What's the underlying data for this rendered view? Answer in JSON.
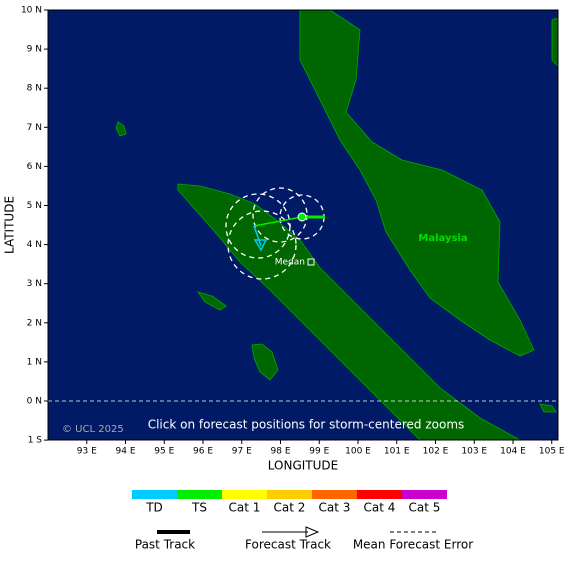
{
  "map": {
    "x_axis_label": "LONGITUDE",
    "y_axis_label": "LATITUDE",
    "xticks": [
      {
        "value": 93,
        "label": "93 E"
      },
      {
        "value": 94,
        "label": "94 E"
      },
      {
        "value": 95,
        "label": "95 E"
      },
      {
        "value": 96,
        "label": "96 E"
      },
      {
        "value": 97,
        "label": "97 E"
      },
      {
        "value": 98,
        "label": "98 E"
      },
      {
        "value": 99,
        "label": "99 E"
      },
      {
        "value": 100,
        "label": "100 E"
      },
      {
        "value": 101,
        "label": "101 E"
      },
      {
        "value": 102,
        "label": "102 E"
      },
      {
        "value": 103,
        "label": "103 E"
      },
      {
        "value": 104,
        "label": "104 E"
      },
      {
        "value": 105,
        "label": "105 E"
      }
    ],
    "yticks": [
      {
        "value": 10,
        "label": "10 N"
      },
      {
        "value": 9,
        "label": "9 N"
      },
      {
        "value": 8,
        "label": "8 N"
      },
      {
        "value": 7,
        "label": "7 N"
      },
      {
        "value": 6,
        "label": "6 N"
      },
      {
        "value": 5,
        "label": "5 N"
      },
      {
        "value": 4,
        "label": "4 N"
      },
      {
        "value": 3,
        "label": "3 N"
      },
      {
        "value": 2,
        "label": "2 N"
      },
      {
        "value": 1,
        "label": "1 N"
      },
      {
        "value": 0,
        "label": "0 N"
      },
      {
        "value": -1,
        "label": "1 S"
      }
    ],
    "copyright": "© UCL 2025",
    "hint": "Click on forecast positions for storm-centered zooms",
    "places": [
      "Malaysia",
      "Medan"
    ]
  },
  "legend": {
    "intensity": [
      {
        "label": "TD",
        "color": "#00ccff"
      },
      {
        "label": "TS",
        "color": "#00ee00"
      },
      {
        "label": "Cat 1",
        "color": "#ffff00"
      },
      {
        "label": "Cat 2",
        "color": "#ffcc00"
      },
      {
        "label": "Cat 3",
        "color": "#ff6600"
      },
      {
        "label": "Cat 4",
        "color": "#ff0000"
      },
      {
        "label": "Cat 5",
        "color": "#cc00cc"
      }
    ],
    "tracks": [
      "Past Track",
      "Forecast Track",
      "Mean Forecast Error"
    ]
  }
}
